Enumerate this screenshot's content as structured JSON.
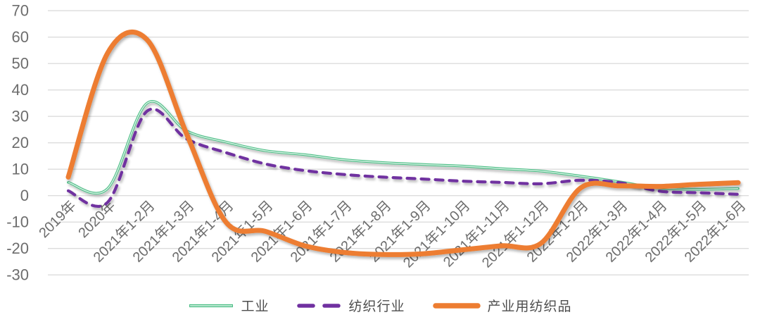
{
  "chart_data": {
    "type": "line",
    "categories": [
      "2019年",
      "2020年",
      "2021年1-2月",
      "2021年1-3月",
      "2021年1-4月",
      "2021年1-5月",
      "2021年1-6月",
      "2021年1-7月",
      "2021年1-8月",
      "2021年1-9月",
      "2021年1-10月",
      "2021年1-11月",
      "2021年1-12月",
      "2022年1-2月",
      "2022年1-3月",
      "2022年1-4月",
      "2022年1-5月",
      "2022年1-6月"
    ],
    "series": [
      {
        "name": "工业",
        "style": "solid-double",
        "color": "#4DBE86",
        "inner_color": "#D9F3E6",
        "width": 3.6,
        "values": [
          5,
          2.7,
          35,
          24.5,
          20.3,
          17,
          15.5,
          13.6,
          12.5,
          11.8,
          11.2,
          10.2,
          9.3,
          7.4,
          5.2,
          2.9,
          2.4,
          2.7
        ]
      },
      {
        "name": "纺织行业",
        "style": "dashed",
        "color": "#7030A0",
        "width": 4.2,
        "values": [
          1.8,
          -2.5,
          32,
          21.5,
          16.3,
          12,
          9.5,
          8,
          7,
          6.3,
          5.5,
          5,
          4.5,
          5.8,
          4.9,
          1.7,
          1.1,
          0.5
        ]
      },
      {
        "name": "产业用纺织品",
        "style": "solid",
        "color": "#ED7D31",
        "width": 7,
        "values": [
          7,
          54,
          59,
          23.5,
          -10,
          -13.5,
          -19,
          -21.5,
          -22.3,
          -22,
          -20.5,
          -19,
          -18,
          2.9,
          3.7,
          3.5,
          4.3,
          4.9
        ]
      }
    ],
    "title": "",
    "xlabel": "",
    "ylabel": "",
    "ylim": [
      -30,
      70
    ],
    "ytick_step": 10,
    "y_tick_labels": [
      "70",
      "60",
      "50",
      "40",
      "30",
      "20",
      "10",
      "0",
      "-10",
      "-20",
      "-30"
    ],
    "grid": true,
    "gridline_color": "#dcdcdc",
    "tick_label_color": "#6d6d6d",
    "legend_position": "bottom",
    "x_label_rotation_deg": -45,
    "smoothed_lines": true
  }
}
